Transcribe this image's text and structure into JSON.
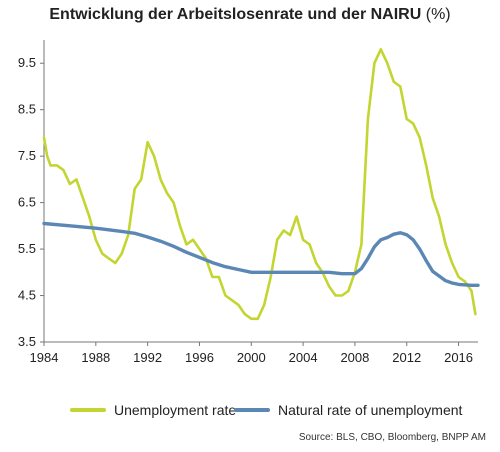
{
  "chart_data": {
    "type": "line",
    "title": "Entwicklung der Arbeitslosenrate und der NAIRU",
    "title_unit": "(%)",
    "xlabel": "",
    "ylabel": "",
    "xlim": [
      1984,
      2017.5
    ],
    "ylim": [
      3.5,
      10.0
    ],
    "x_ticks": [
      1984,
      1988,
      1992,
      1996,
      2000,
      2004,
      2008,
      2012,
      2016
    ],
    "y_ticks": [
      3.5,
      4.5,
      5.5,
      6.5,
      7.5,
      8.5,
      9.5
    ],
    "grid": false,
    "legend_position": "bottom",
    "series": [
      {
        "name": "Unemployment rate",
        "color": "#c3d530",
        "x": [
          1984.0,
          1984.25,
          1984.5,
          1985.0,
          1985.5,
          1986.0,
          1986.5,
          1987.0,
          1987.5,
          1988.0,
          1988.5,
          1989.0,
          1989.5,
          1990.0,
          1990.5,
          1991.0,
          1991.5,
          1992.0,
          1992.5,
          1993.0,
          1993.5,
          1994.0,
          1994.5,
          1995.0,
          1995.5,
          1996.0,
          1996.5,
          1997.0,
          1997.5,
          1998.0,
          1998.5,
          1999.0,
          1999.5,
          2000.0,
          2000.5,
          2001.0,
          2001.5,
          2002.0,
          2002.5,
          2003.0,
          2003.5,
          2004.0,
          2004.5,
          2005.0,
          2005.5,
          2006.0,
          2006.5,
          2007.0,
          2007.5,
          2008.0,
          2008.5,
          2009.0,
          2009.5,
          2010.0,
          2010.5,
          2011.0,
          2011.5,
          2012.0,
          2012.5,
          2013.0,
          2013.5,
          2014.0,
          2014.5,
          2015.0,
          2015.5,
          2016.0,
          2016.5,
          2017.0,
          2017.3
        ],
        "values": [
          7.9,
          7.5,
          7.3,
          7.3,
          7.2,
          6.9,
          7.0,
          6.6,
          6.2,
          5.7,
          5.4,
          5.3,
          5.2,
          5.4,
          5.8,
          6.8,
          7.0,
          7.8,
          7.5,
          7.0,
          6.7,
          6.5,
          6.0,
          5.6,
          5.7,
          5.5,
          5.3,
          4.9,
          4.9,
          4.5,
          4.4,
          4.3,
          4.1,
          4.0,
          4.0,
          4.3,
          4.9,
          5.7,
          5.9,
          5.8,
          6.2,
          5.7,
          5.6,
          5.2,
          5.0,
          4.7,
          4.5,
          4.5,
          4.6,
          5.0,
          5.6,
          8.3,
          9.5,
          9.8,
          9.5,
          9.1,
          9.0,
          8.3,
          8.2,
          7.9,
          7.3,
          6.6,
          6.2,
          5.6,
          5.2,
          4.9,
          4.8,
          4.6,
          4.1
        ]
      },
      {
        "name": "Natural rate of unemployment",
        "color": "#5b87b5",
        "x": [
          1984.0,
          1986.0,
          1988.0,
          1990.0,
          1991.0,
          1992.0,
          1993.0,
          1994.0,
          1995.0,
          1996.0,
          1997.0,
          1998.0,
          1999.0,
          2000.0,
          2002.0,
          2004.0,
          2006.0,
          2007.0,
          2008.0,
          2008.5,
          2009.0,
          2009.5,
          2010.0,
          2010.5,
          2011.0,
          2011.5,
          2012.0,
          2012.5,
          2013.0,
          2013.5,
          2014.0,
          2014.5,
          2015.0,
          2015.5,
          2016.0,
          2017.0,
          2017.5
        ],
        "values": [
          6.05,
          6.0,
          5.95,
          5.88,
          5.84,
          5.76,
          5.67,
          5.56,
          5.43,
          5.32,
          5.21,
          5.12,
          5.06,
          5.0,
          5.0,
          5.0,
          5.0,
          4.97,
          4.97,
          5.08,
          5.3,
          5.55,
          5.7,
          5.75,
          5.82,
          5.85,
          5.81,
          5.7,
          5.5,
          5.25,
          5.02,
          4.92,
          4.82,
          4.77,
          4.74,
          4.72,
          4.72
        ]
      }
    ]
  },
  "source": "Source: BLS, CBO,  Bloomberg, BNPP AM"
}
